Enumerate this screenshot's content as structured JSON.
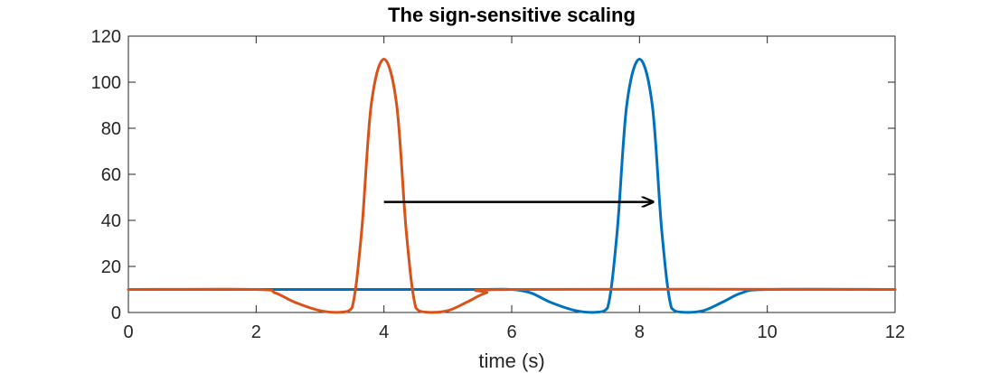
{
  "chart_data": {
    "type": "line",
    "title": "The sign-sensitive scaling",
    "xlabel": "time (s)",
    "ylabel": "",
    "xlim": [
      0,
      12
    ],
    "ylim": [
      0,
      120
    ],
    "xticks": [
      0,
      2,
      4,
      6,
      8,
      10,
      12
    ],
    "yticks": [
      0,
      20,
      40,
      60,
      80,
      100,
      120
    ],
    "grid": false,
    "series": [
      {
        "color": "#0072BD",
        "x": [
          0,
          2,
          3,
          4,
          5,
          5.5,
          6,
          6.3,
          6.6,
          7.0,
          7.3,
          7.5,
          7.65,
          7.8,
          8.0,
          8.2,
          8.35,
          8.5,
          8.7,
          9.0,
          9.3,
          9.6,
          10.0,
          12
        ],
        "y": [
          10,
          10,
          10,
          10,
          10,
          10,
          10,
          8.5,
          4.5,
          0.8,
          0.1,
          2,
          35,
          90,
          110,
          90,
          35,
          2,
          0.1,
          0.8,
          4.5,
          8.5,
          10,
          10
        ]
      },
      {
        "color": "#D95319",
        "x": [
          0,
          2.0,
          2.3,
          2.6,
          3.0,
          3.3,
          3.5,
          3.65,
          3.8,
          4.0,
          4.2,
          4.35,
          4.5,
          4.7,
          5.0,
          5.3,
          5.6,
          6.0,
          12
        ],
        "y": [
          10,
          10,
          8.5,
          4.5,
          0.8,
          0.1,
          2,
          35,
          90,
          110,
          90,
          35,
          2,
          0.1,
          0.8,
          4.5,
          8.5,
          10,
          10
        ]
      }
    ],
    "annotations": [
      {
        "type": "arrow",
        "x": [
          4.0,
          8.2
        ],
        "y": [
          48,
          48
        ],
        "color": "#000000"
      }
    ]
  }
}
